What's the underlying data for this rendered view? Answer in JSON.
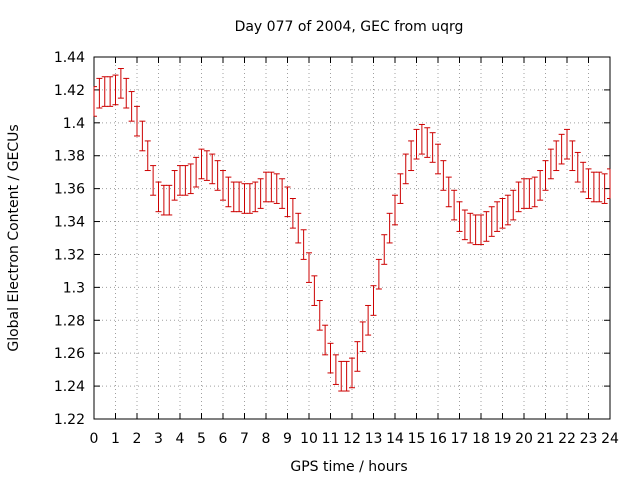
{
  "chart_data": {
    "type": "line",
    "title": "Day 077 of 2004, GEC from uqrg",
    "xlabel": "GPS time / hours",
    "ylabel": "Global Electron Content / GECUs",
    "xlim": [
      0,
      24
    ],
    "ylim": [
      1.22,
      1.44
    ],
    "grid": true,
    "series_color": "#cc0000",
    "x_ticks": [
      0,
      1,
      2,
      3,
      4,
      5,
      6,
      7,
      8,
      9,
      10,
      11,
      12,
      13,
      14,
      15,
      16,
      17,
      18,
      19,
      20,
      21,
      22,
      23,
      24
    ],
    "x_tick_labels": [
      "0",
      "1",
      "2",
      "3",
      "4",
      "5",
      "6",
      "7",
      "8",
      "9",
      "10",
      "11",
      "12",
      "13",
      "14",
      "15",
      "16",
      "17",
      "18",
      "19",
      "20",
      "21",
      "22",
      "23",
      "24"
    ],
    "y_ticks": [
      1.22,
      1.24,
      1.26,
      1.28,
      1.3,
      1.32,
      1.34,
      1.36,
      1.38,
      1.4,
      1.42,
      1.44
    ],
    "y_tick_labels": [
      "1.22",
      "1.24",
      "1.26",
      "1.28",
      "1.3",
      "1.32",
      "1.34",
      "1.36",
      "1.38",
      "1.4",
      "1.42",
      "1.44"
    ],
    "series": [
      {
        "name": "GEC",
        "error": 0.009,
        "x": [
          0,
          0.25,
          0.5,
          0.75,
          1,
          1.25,
          1.5,
          1.75,
          2,
          2.25,
          2.5,
          2.75,
          3,
          3.25,
          3.5,
          3.75,
          4,
          4.25,
          4.5,
          4.75,
          5,
          5.25,
          5.5,
          5.75,
          6,
          6.25,
          6.5,
          6.75,
          7,
          7.25,
          7.5,
          7.75,
          8,
          8.25,
          8.5,
          8.75,
          9,
          9.25,
          9.5,
          9.75,
          10,
          10.25,
          10.5,
          10.75,
          11,
          11.25,
          11.5,
          11.75,
          12,
          12.25,
          12.5,
          12.75,
          13,
          13.25,
          13.5,
          13.75,
          14,
          14.25,
          14.5,
          14.75,
          15,
          15.25,
          15.5,
          15.75,
          16,
          16.25,
          16.5,
          16.75,
          17,
          17.25,
          17.5,
          17.75,
          18,
          18.25,
          18.5,
          18.75,
          19,
          19.25,
          19.5,
          19.75,
          20,
          20.25,
          20.5,
          20.75,
          21,
          21.25,
          21.5,
          21.75,
          22,
          22.25,
          22.5,
          22.75,
          23,
          23.25,
          23.5,
          23.75,
          24
        ],
        "y": [
          1.413,
          1.418,
          1.419,
          1.419,
          1.42,
          1.424,
          1.418,
          1.41,
          1.401,
          1.392,
          1.38,
          1.365,
          1.355,
          1.353,
          1.353,
          1.362,
          1.365,
          1.365,
          1.366,
          1.37,
          1.375,
          1.374,
          1.372,
          1.368,
          1.362,
          1.358,
          1.355,
          1.355,
          1.354,
          1.354,
          1.355,
          1.357,
          1.361,
          1.361,
          1.36,
          1.357,
          1.352,
          1.345,
          1.336,
          1.326,
          1.312,
          1.298,
          1.283,
          1.268,
          1.257,
          1.25,
          1.246,
          1.246,
          1.248,
          1.258,
          1.27,
          1.28,
          1.292,
          1.308,
          1.323,
          1.336,
          1.347,
          1.36,
          1.372,
          1.38,
          1.387,
          1.39,
          1.388,
          1.385,
          1.378,
          1.368,
          1.358,
          1.35,
          1.343,
          1.338,
          1.336,
          1.335,
          1.335,
          1.337,
          1.34,
          1.343,
          1.345,
          1.347,
          1.35,
          1.355,
          1.357,
          1.357,
          1.358,
          1.362,
          1.368,
          1.375,
          1.38,
          1.384,
          1.387,
          1.38,
          1.373,
          1.367,
          1.363,
          1.361,
          1.361,
          1.36,
          1.363
        ]
      }
    ]
  }
}
